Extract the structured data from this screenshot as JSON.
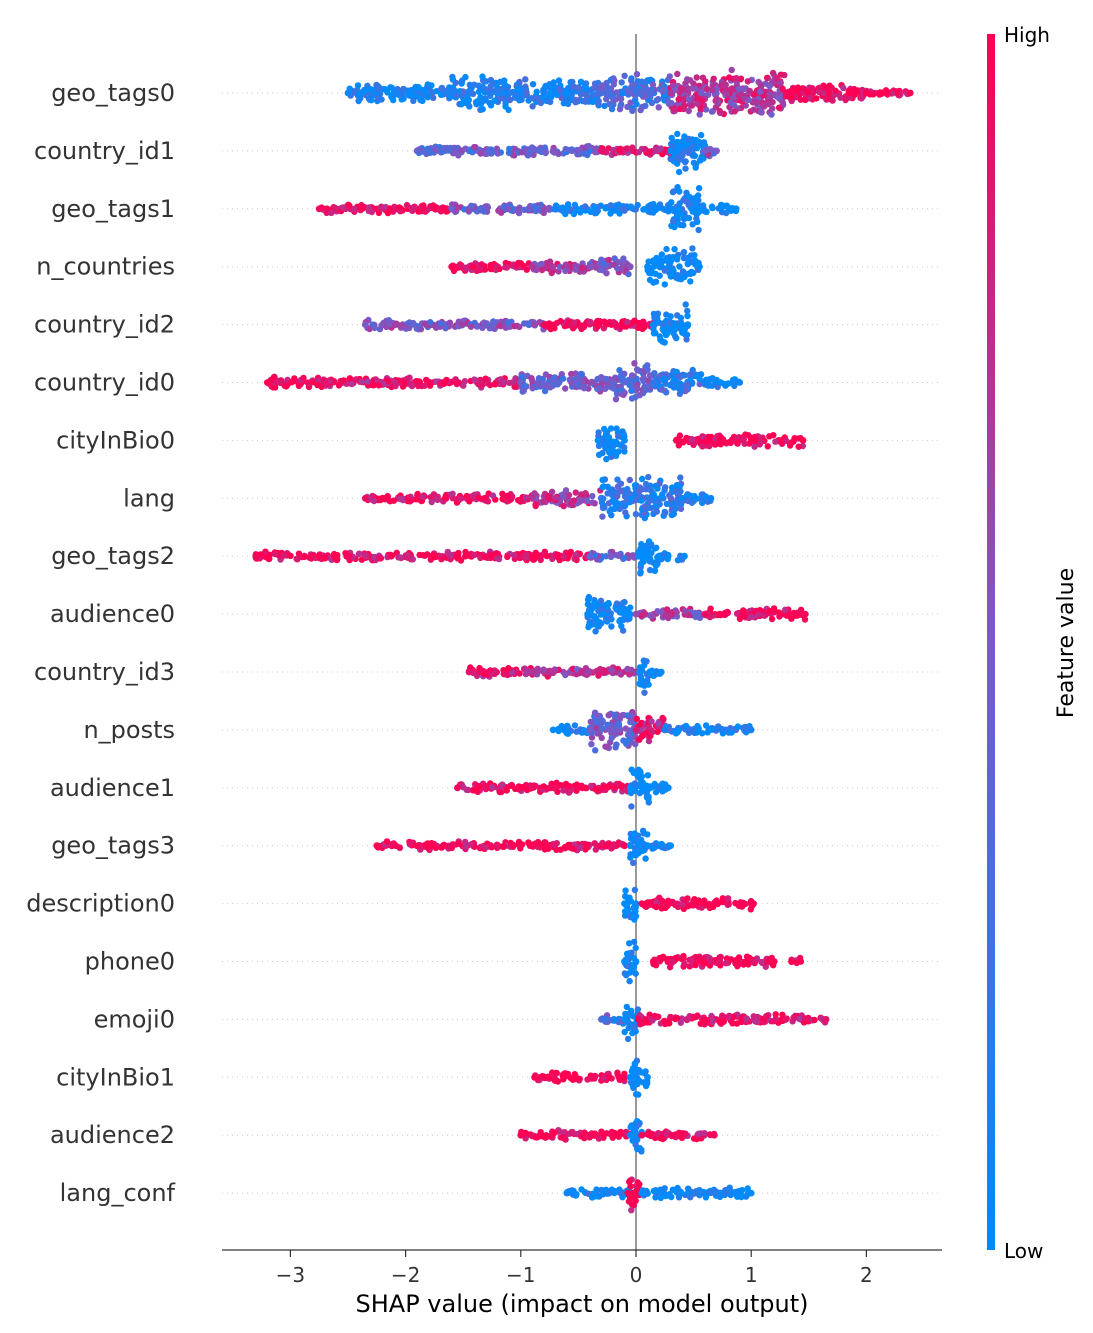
{
  "chart_data": {
    "type": "scatter",
    "subtype": "shap-beeswarm",
    "xlabel": "SHAP value (impact on model output)",
    "xlim": [
      -3.6,
      2.65
    ],
    "xticks": [
      -3,
      -2,
      -1,
      0,
      1,
      2
    ],
    "xtick_labels": [
      "−3",
      "−2",
      "−1",
      "0",
      "1",
      "2"
    ],
    "colorbar": {
      "title": "Feature value",
      "high_label": "High",
      "low_label": "Low",
      "high_color": "#ff0052",
      "low_color": "#008bfb"
    },
    "features": [
      {
        "name": "geo_tags0",
        "segments": [
          {
            "x0": -2.5,
            "x1": -1.6,
            "low": 0.95,
            "spread": 0.35
          },
          {
            "x0": -1.6,
            "x1": -1.1,
            "low": 0.9,
            "spread": 0.75
          },
          {
            "x0": -1.1,
            "x1": -0.3,
            "low": 0.85,
            "spread": 0.55
          },
          {
            "x0": -0.3,
            "x1": 0.3,
            "low": 0.7,
            "spread": 0.8
          },
          {
            "x0": 0.3,
            "x1": 1.3,
            "low": 0.3,
            "spread": 1.0
          },
          {
            "x0": 1.3,
            "x1": 2.0,
            "low": 0.05,
            "spread": 0.3
          },
          {
            "x0": 2.0,
            "x1": 2.38,
            "low": 0.0,
            "spread": 0.05
          }
        ]
      },
      {
        "name": "country_id1",
        "segments": [
          {
            "x0": -1.9,
            "x1": -0.3,
            "low": 0.6,
            "spread": 0.12
          },
          {
            "x0": -0.3,
            "x1": 0.3,
            "low": 0.1,
            "spread": 0.1
          },
          {
            "x0": 0.3,
            "x1": 0.6,
            "low": 0.95,
            "spread": 1.0
          },
          {
            "x0": 0.6,
            "x1": 0.7,
            "low": 0.5,
            "spread": 0.15
          }
        ]
      },
      {
        "name": "geo_tags1",
        "segments": [
          {
            "x0": -2.75,
            "x1": -1.6,
            "low": 0.05,
            "spread": 0.12
          },
          {
            "x0": -1.6,
            "x1": -0.7,
            "low": 0.55,
            "spread": 0.12
          },
          {
            "x0": -0.7,
            "x1": 0.3,
            "low": 0.95,
            "spread": 0.15
          },
          {
            "x0": 0.3,
            "x1": 0.55,
            "low": 0.98,
            "spread": 0.95
          },
          {
            "x0": 0.55,
            "x1": 0.87,
            "low": 1.0,
            "spread": 0.1
          }
        ]
      },
      {
        "name": "n_countries",
        "segments": [
          {
            "x0": -1.6,
            "x1": -0.9,
            "low": 0.0,
            "spread": 0.12
          },
          {
            "x0": -0.9,
            "x1": -0.4,
            "low": 0.3,
            "spread": 0.18
          },
          {
            "x0": -0.4,
            "x1": -0.05,
            "low": 0.45,
            "spread": 0.3
          },
          {
            "x0": 0.1,
            "x1": 0.55,
            "low": 1.0,
            "spread": 0.75
          }
        ]
      },
      {
        "name": "country_id2",
        "segments": [
          {
            "x0": -2.35,
            "x1": -0.8,
            "low": 0.5,
            "spread": 0.12
          },
          {
            "x0": -0.8,
            "x1": 0.15,
            "low": 0.02,
            "spread": 0.12
          },
          {
            "x0": 0.15,
            "x1": 0.45,
            "low": 1.0,
            "spread": 0.85
          }
        ]
      },
      {
        "name": "country_id0",
        "segments": [
          {
            "x0": -3.2,
            "x1": -2.7,
            "low": 0.0,
            "spread": 0.15
          },
          {
            "x0": -2.7,
            "x1": -1.0,
            "low": 0.1,
            "spread": 0.15
          },
          {
            "x0": -1.0,
            "x1": -0.2,
            "low": 0.55,
            "spread": 0.35
          },
          {
            "x0": -0.2,
            "x1": 0.15,
            "low": 0.6,
            "spread": 0.85
          },
          {
            "x0": 0.15,
            "x1": 0.6,
            "low": 0.8,
            "spread": 0.55
          },
          {
            "x0": 0.6,
            "x1": 0.9,
            "low": 0.95,
            "spread": 0.15
          }
        ]
      },
      {
        "name": "cityInBio0",
        "segments": [
          {
            "x0": -0.33,
            "x1": -0.1,
            "low": 1.0,
            "spread": 0.85
          },
          {
            "x0": 0.35,
            "x1": 1.45,
            "low": 0.0,
            "spread": 0.2
          }
        ]
      },
      {
        "name": "lang",
        "segments": [
          {
            "x0": -2.35,
            "x1": -0.9,
            "low": 0.05,
            "spread": 0.12
          },
          {
            "x0": -0.9,
            "x1": -0.3,
            "low": 0.3,
            "spread": 0.3
          },
          {
            "x0": -0.3,
            "x1": 0.4,
            "low": 0.85,
            "spread": 0.9
          },
          {
            "x0": 0.4,
            "x1": 0.65,
            "low": 0.95,
            "spread": 0.2
          }
        ]
      },
      {
        "name": "geo_tags2",
        "segments": [
          {
            "x0": -3.3,
            "x1": -0.4,
            "low": 0.05,
            "spread": 0.1
          },
          {
            "x0": -0.4,
            "x1": 0.02,
            "low": 0.6,
            "spread": 0.12
          },
          {
            "x0": 0.02,
            "x1": 0.2,
            "low": 1.0,
            "spread": 0.85
          },
          {
            "x0": 0.2,
            "x1": 0.42,
            "low": 1.0,
            "spread": 0.1
          }
        ]
      },
      {
        "name": "audience0",
        "segments": [
          {
            "x0": -0.42,
            "x1": -0.05,
            "low": 1.0,
            "spread": 0.85
          },
          {
            "x0": 0.0,
            "x1": 0.6,
            "low": 0.4,
            "spread": 0.15
          },
          {
            "x0": 0.6,
            "x1": 1.47,
            "low": 0.05,
            "spread": 0.18
          }
        ]
      },
      {
        "name": "country_id3",
        "segments": [
          {
            "x0": -1.45,
            "x1": -0.9,
            "low": 0.1,
            "spread": 0.12
          },
          {
            "x0": -0.9,
            "x1": 0.0,
            "low": 0.3,
            "spread": 0.1
          },
          {
            "x0": 0.03,
            "x1": 0.12,
            "low": 1.0,
            "spread": 0.85
          },
          {
            "x0": 0.12,
            "x1": 0.22,
            "low": 1.0,
            "spread": 0.15
          }
        ]
      },
      {
        "name": "n_posts",
        "segments": [
          {
            "x0": -0.72,
            "x1": -0.4,
            "low": 1.0,
            "spread": 0.1
          },
          {
            "x0": -0.4,
            "x1": 0.0,
            "low": 0.55,
            "spread": 0.95
          },
          {
            "x0": 0.0,
            "x1": 0.25,
            "low": 0.15,
            "spread": 0.6
          },
          {
            "x0": 0.25,
            "x1": 1.0,
            "low": 0.9,
            "spread": 0.1
          }
        ]
      },
      {
        "name": "audience1",
        "segments": [
          {
            "x0": -1.55,
            "x1": -0.05,
            "low": 0.05,
            "spread": 0.12
          },
          {
            "x0": -0.05,
            "x1": 0.12,
            "low": 1.0,
            "spread": 0.85
          },
          {
            "x0": 0.12,
            "x1": 0.28,
            "low": 1.0,
            "spread": 0.12
          }
        ]
      },
      {
        "name": "geo_tags3",
        "segments": [
          {
            "x0": -2.25,
            "x1": -0.1,
            "low": 0.02,
            "spread": 0.1
          },
          {
            "x0": -0.05,
            "x1": 0.1,
            "low": 1.0,
            "spread": 0.85
          },
          {
            "x0": 0.1,
            "x1": 0.3,
            "low": 1.0,
            "spread": 0.12
          }
        ]
      },
      {
        "name": "description0",
        "segments": [
          {
            "x0": -0.1,
            "x1": 0.0,
            "low": 1.0,
            "spread": 0.8
          },
          {
            "x0": 0.05,
            "x1": 1.02,
            "low": 0.0,
            "spread": 0.18
          }
        ]
      },
      {
        "name": "phone0",
        "segments": [
          {
            "x0": -0.1,
            "x1": 0.0,
            "low": 1.0,
            "spread": 0.85
          },
          {
            "x0": 0.15,
            "x1": 1.2,
            "low": 0.0,
            "spread": 0.18
          },
          {
            "x0": 1.35,
            "x1": 1.43,
            "low": 0.0,
            "spread": 0.1
          }
        ]
      },
      {
        "name": "emoji0",
        "segments": [
          {
            "x0": -0.3,
            "x1": -0.1,
            "low": 0.7,
            "spread": 0.1
          },
          {
            "x0": -0.1,
            "x1": 0.02,
            "low": 1.0,
            "spread": 0.85
          },
          {
            "x0": 0.02,
            "x1": 1.3,
            "low": 0.05,
            "spread": 0.15
          },
          {
            "x0": 1.3,
            "x1": 1.65,
            "low": 0.1,
            "spread": 0.08
          }
        ]
      },
      {
        "name": "cityInBio1",
        "segments": [
          {
            "x0": -0.88,
            "x1": -0.1,
            "low": 0.0,
            "spread": 0.15
          },
          {
            "x0": -0.05,
            "x1": 0.1,
            "low": 1.0,
            "spread": 0.85
          }
        ]
      },
      {
        "name": "audience2",
        "segments": [
          {
            "x0": -1.0,
            "x1": -0.05,
            "low": 0.0,
            "spread": 0.12
          },
          {
            "x0": -0.05,
            "x1": 0.05,
            "low": 1.0,
            "spread": 0.85
          },
          {
            "x0": 0.05,
            "x1": 0.68,
            "low": 0.05,
            "spread": 0.1
          }
        ]
      },
      {
        "name": "lang_conf",
        "segments": [
          {
            "x0": -0.6,
            "x1": -0.05,
            "low": 0.95,
            "spread": 0.12
          },
          {
            "x0": -0.07,
            "x1": 0.03,
            "low": 0.0,
            "spread": 0.85
          },
          {
            "x0": 0.05,
            "x1": 1.0,
            "low": 1.0,
            "spread": 0.15
          }
        ]
      }
    ]
  }
}
